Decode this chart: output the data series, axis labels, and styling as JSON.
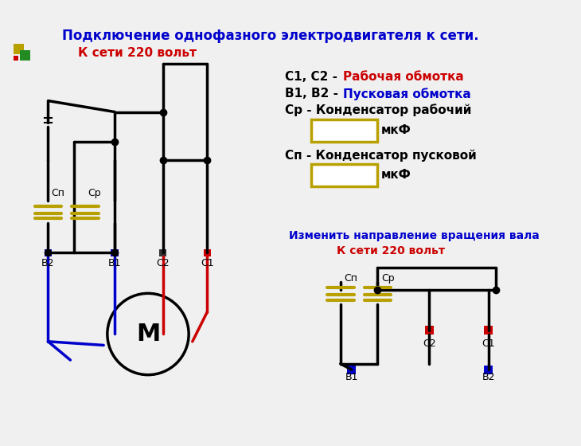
{
  "title": "Подключение однофазного электродвигателя к сети.",
  "title_color": "#0000cc",
  "bg_color": "#f0f0f0",
  "wire_color_black": "#000000",
  "wire_color_red": "#cc0000",
  "wire_color_blue": "#0000cc",
  "capacitor_color": "#b8a000",
  "node_color": "#000000",
  "legend_c_text": "С1, С2 - ",
  "legend_c_colored": "Рабочая обмотка",
  "legend_c_color": "#cc0000",
  "legend_b_text": "В1, В2 - ",
  "legend_b_colored": "Пусковая обмотка",
  "legend_b_color": "#0000cc",
  "legend_cr": "Ср - Конденсатор рабочий",
  "legend_cp": "Сп - Конденсатор пусковой",
  "legend_mkf": "мкФ",
  "text_220_1": "К сети 220 вольт",
  "text_220_color": "#cc0000",
  "text_change": "Изменить направление вращения вала",
  "text_change_color": "#0000cc",
  "text_220_2": "К сети 220 вольт",
  "motor_label": "М",
  "label_c1": "С1",
  "label_c2": "С2",
  "label_b1": "В1",
  "label_b2": "В2",
  "label_cp": "Сп",
  "label_cr": "Ср"
}
